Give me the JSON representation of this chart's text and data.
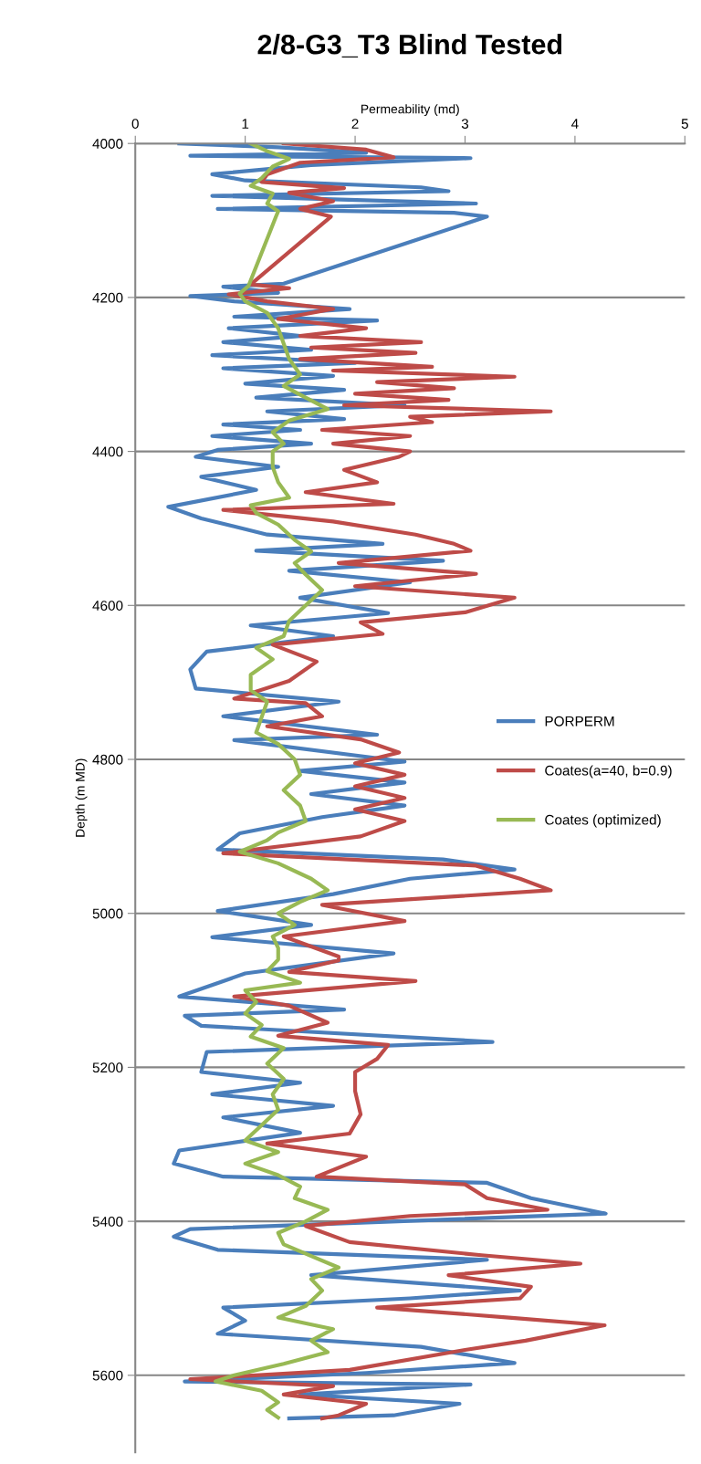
{
  "chart_data": {
    "type": "line",
    "title": "2/8-G3_T3 Blind Tested",
    "xlabel": "Permeability (md)",
    "ylabel": "Depth (m MD)",
    "orientation": "horizontal",
    "xlim": [
      0,
      5
    ],
    "xticks": [
      0,
      1,
      2,
      3,
      4,
      5
    ],
    "ylim": [
      5700,
      4000
    ],
    "yticks": [
      4000,
      4200,
      4400,
      4600,
      4800,
      5000,
      5200,
      5400,
      5600
    ],
    "grid": "y",
    "legend": "right",
    "line_style": "solid",
    "marker": "none",
    "series": [
      {
        "name": "PORPERM",
        "color": "#4a7ebb",
        "x": [
          4000,
          4005,
          4012,
          4016,
          4019,
          4028,
          4040,
          4048,
          4057,
          4062,
          4068,
          4078,
          4085,
          4090,
          4095,
          4182,
          4186,
          4194,
          4198,
          4205,
          4215,
          4225,
          4230,
          4240,
          4250,
          4258,
          4268,
          4275,
          4285,
          4292,
          4302,
          4312,
          4320,
          4330,
          4340,
          4348,
          4358,
          4365,
          4372,
          4380,
          4390,
          4398,
          4407,
          4420,
          4433,
          4450,
          4472,
          4487,
          4508,
          4520,
          4529,
          4542,
          4555,
          4570,
          4590,
          4610,
          4626,
          4640,
          4660,
          4683,
          4708,
          4725,
          4744,
          4768,
          4775,
          4803,
          4815,
          4830,
          4845,
          4860,
          4875,
          4896,
          4917,
          4930,
          4943,
          4955,
          4975,
          4997,
          5015,
          5031,
          5052,
          5078,
          5108,
          5125,
          5133,
          5146,
          5167,
          5180,
          5206,
          5220,
          5235,
          5250,
          5265,
          5285,
          5308,
          5325,
          5342,
          5350,
          5370,
          5390,
          5410,
          5420,
          5437,
          5450,
          5470,
          5490,
          5500,
          5512,
          5529,
          5546,
          5563,
          5584,
          5597,
          5608,
          5612,
          5625,
          5637,
          5652,
          5656
        ],
        "values": [
          0.4,
          1.3,
          2.1,
          0.5,
          3.05,
          1.6,
          0.7,
          1.0,
          2.6,
          2.85,
          0.7,
          3.1,
          0.75,
          2.9,
          3.2,
          1.35,
          0.8,
          1.3,
          0.5,
          0.9,
          1.95,
          0.9,
          2.2,
          0.85,
          1.5,
          0.8,
          1.6,
          0.7,
          2.0,
          0.8,
          1.8,
          1.0,
          1.9,
          1.1,
          2.45,
          1.2,
          1.9,
          0.8,
          1.5,
          0.7,
          1.6,
          0.75,
          0.55,
          1.3,
          0.6,
          1.1,
          0.3,
          0.6,
          1.2,
          2.25,
          1.1,
          2.8,
          1.4,
          2.5,
          1.5,
          2.3,
          1.05,
          1.8,
          0.65,
          0.5,
          0.55,
          1.85,
          0.8,
          2.2,
          0.9,
          2.45,
          1.5,
          2.45,
          1.6,
          2.45,
          1.7,
          0.95,
          0.75,
          2.8,
          3.45,
          2.5,
          1.8,
          0.75,
          1.6,
          0.7,
          2.35,
          1.0,
          0.4,
          1.9,
          0.45,
          0.6,
          3.25,
          0.65,
          0.6,
          1.5,
          0.7,
          1.8,
          0.8,
          1.5,
          0.4,
          0.35,
          0.8,
          3.2,
          3.6,
          4.28,
          0.5,
          0.35,
          0.75,
          3.2,
          1.6,
          3.5,
          2.5,
          0.8,
          1.0,
          0.75,
          2.6,
          3.45,
          2.1,
          0.45,
          3.05,
          1.5,
          2.95,
          2.35,
          1.4
        ]
      },
      {
        "name": "Coates(a=40, b=0.9)",
        "color": "#be4b48",
        "x": [
          4000,
          4008,
          4018,
          4025,
          4040,
          4050,
          4058,
          4064,
          4075,
          4085,
          4095,
          4183,
          4188,
          4196,
          4205,
          4215,
          4228,
          4240,
          4250,
          4258,
          4265,
          4272,
          4280,
          4290,
          4295,
          4303,
          4310,
          4318,
          4325,
          4333,
          4340,
          4348,
          4355,
          4362,
          4372,
          4380,
          4390,
          4400,
          4407,
          4424,
          4440,
          4453,
          4468,
          4476,
          4491,
          4508,
          4520,
          4529,
          4545,
          4559,
          4575,
          4590,
          4609,
          4622,
          4637,
          4651,
          4673,
          4698,
          4721,
          4727,
          4744,
          4757,
          4774,
          4791,
          4805,
          4820,
          4835,
          4850,
          4865,
          4880,
          4900,
          4922,
          4938,
          4955,
          4970,
          4989,
          5010,
          5030,
          5056,
          5061,
          5076,
          5088,
          5108,
          5120,
          5142,
          5159,
          5171,
          5189,
          5206,
          5231,
          5261,
          5286,
          5299,
          5316,
          5342,
          5352,
          5370,
          5385,
          5393,
          5406,
          5427,
          5444,
          5455,
          5470,
          5485,
          5500,
          5512,
          5525,
          5535,
          5555,
          5567,
          5593,
          5605,
          5614,
          5625,
          5637,
          5652,
          5656
        ],
        "values": [
          1.35,
          2.1,
          2.35,
          1.5,
          1.2,
          1.15,
          1.9,
          1.4,
          1.8,
          1.5,
          1.78,
          1.05,
          1.4,
          0.85,
          1.2,
          1.8,
          1.3,
          2.1,
          1.5,
          2.6,
          1.6,
          2.55,
          1.5,
          2.7,
          1.8,
          3.45,
          2.2,
          2.9,
          2.0,
          2.85,
          1.9,
          3.78,
          2.5,
          2.7,
          1.7,
          2.5,
          1.8,
          2.5,
          2.4,
          1.9,
          2.2,
          1.55,
          2.35,
          0.8,
          1.8,
          2.55,
          2.9,
          3.05,
          1.85,
          3.1,
          2.0,
          3.45,
          3.0,
          2.05,
          2.25,
          1.25,
          1.65,
          1.4,
          0.9,
          1.55,
          1.7,
          1.2,
          2.05,
          2.4,
          2.0,
          2.45,
          2.0,
          2.45,
          2.0,
          2.45,
          2.05,
          0.8,
          3.1,
          3.5,
          3.78,
          1.7,
          2.45,
          1.35,
          1.85,
          1.85,
          1.4,
          2.55,
          0.9,
          1.4,
          1.75,
          1.3,
          2.3,
          2.2,
          2.0,
          2.0,
          2.05,
          1.95,
          1.2,
          2.1,
          1.65,
          3.0,
          3.2,
          3.75,
          2.5,
          1.55,
          1.95,
          3.15,
          4.05,
          2.85,
          3.6,
          3.5,
          2.2,
          3.4,
          4.27,
          3.55,
          3.0,
          1.95,
          0.5,
          1.8,
          1.35,
          2.1,
          1.85,
          1.7
        ]
      },
      {
        "name": "Coates (optimized)",
        "color": "#98b954",
        "x": [
          4000,
          4010,
          4020,
          4030,
          4045,
          4055,
          4065,
          4078,
          4088,
          4095,
          4185,
          4195,
          4205,
          4220,
          4240,
          4260,
          4280,
          4300,
          4315,
          4330,
          4345,
          4360,
          4375,
          4390,
          4400,
          4420,
          4440,
          4460,
          4470,
          4480,
          4495,
          4515,
          4530,
          4545,
          4560,
          4580,
          4600,
          4620,
          4640,
          4655,
          4670,
          4690,
          4710,
          4725,
          4745,
          4765,
          4780,
          4800,
          4820,
          4840,
          4860,
          4880,
          4895,
          4905,
          4920,
          4935,
          4955,
          4970,
          4985,
          5000,
          5015,
          5030,
          5045,
          5060,
          5075,
          5090,
          5100,
          5115,
          5130,
          5145,
          5160,
          5175,
          5195,
          5215,
          5235,
          5255,
          5275,
          5295,
          5310,
          5325,
          5340,
          5355,
          5370,
          5385,
          5400,
          5415,
          5430,
          5445,
          5460,
          5475,
          5490,
          5510,
          5525,
          5540,
          5555,
          5570,
          5585,
          5600,
          5608,
          5620,
          5635,
          5645,
          5655
        ],
        "values": [
          1.05,
          1.2,
          1.4,
          1.25,
          1.15,
          1.05,
          1.25,
          1.2,
          1.3,
          1.28,
          1.03,
          0.95,
          1.0,
          1.2,
          1.3,
          1.35,
          1.4,
          1.5,
          1.35,
          1.55,
          1.75,
          1.4,
          1.25,
          1.35,
          1.25,
          1.25,
          1.3,
          1.4,
          1.05,
          1.1,
          1.3,
          1.45,
          1.6,
          1.45,
          1.55,
          1.7,
          1.55,
          1.4,
          1.35,
          1.1,
          1.25,
          1.05,
          1.05,
          1.2,
          1.15,
          1.1,
          1.3,
          1.45,
          1.5,
          1.35,
          1.5,
          1.55,
          1.3,
          1.2,
          0.95,
          1.3,
          1.6,
          1.75,
          1.5,
          1.3,
          1.45,
          1.25,
          1.3,
          1.3,
          1.2,
          1.5,
          1.0,
          1.1,
          1.0,
          1.15,
          1.05,
          1.35,
          1.2,
          1.35,
          1.25,
          1.3,
          1.15,
          1.0,
          1.3,
          1.0,
          1.3,
          1.5,
          1.45,
          1.75,
          1.55,
          1.3,
          1.35,
          1.6,
          1.85,
          1.6,
          1.7,
          1.55,
          1.3,
          1.8,
          1.6,
          1.75,
          1.35,
          0.9,
          0.73,
          1.15,
          1.3,
          1.2,
          1.3
        ]
      }
    ]
  }
}
